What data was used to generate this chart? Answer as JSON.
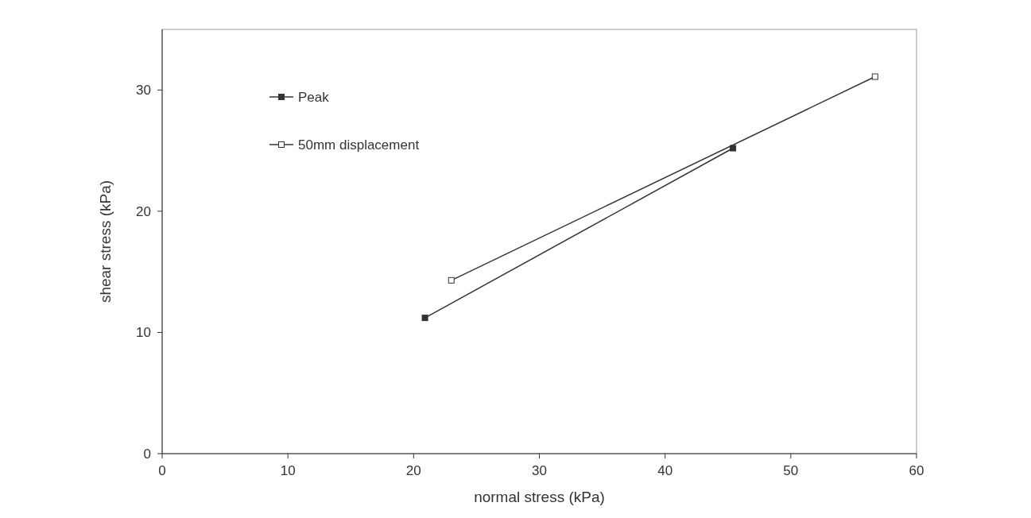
{
  "chart_data": {
    "type": "line",
    "xlabel": "normal stress (kPa)",
    "ylabel": "shear stress (kPa)",
    "xlim": [
      0,
      60
    ],
    "xticks": [
      0,
      10,
      20,
      30,
      40,
      50,
      60
    ],
    "ylim": [
      0,
      35
    ],
    "yticks": [
      0,
      10,
      20,
      30
    ],
    "marker": "square",
    "legend": "top left",
    "grid": false,
    "series": [
      {
        "name": "Peak",
        "color": "#333333",
        "x": [
          20.9,
          45.4
        ],
        "values": [
          11.2,
          25.2
        ]
      },
      {
        "name": "50mm displacement",
        "color": "#333333",
        "x": [
          23.0,
          56.7
        ],
        "values": [
          14.3,
          31.1
        ]
      }
    ]
  }
}
